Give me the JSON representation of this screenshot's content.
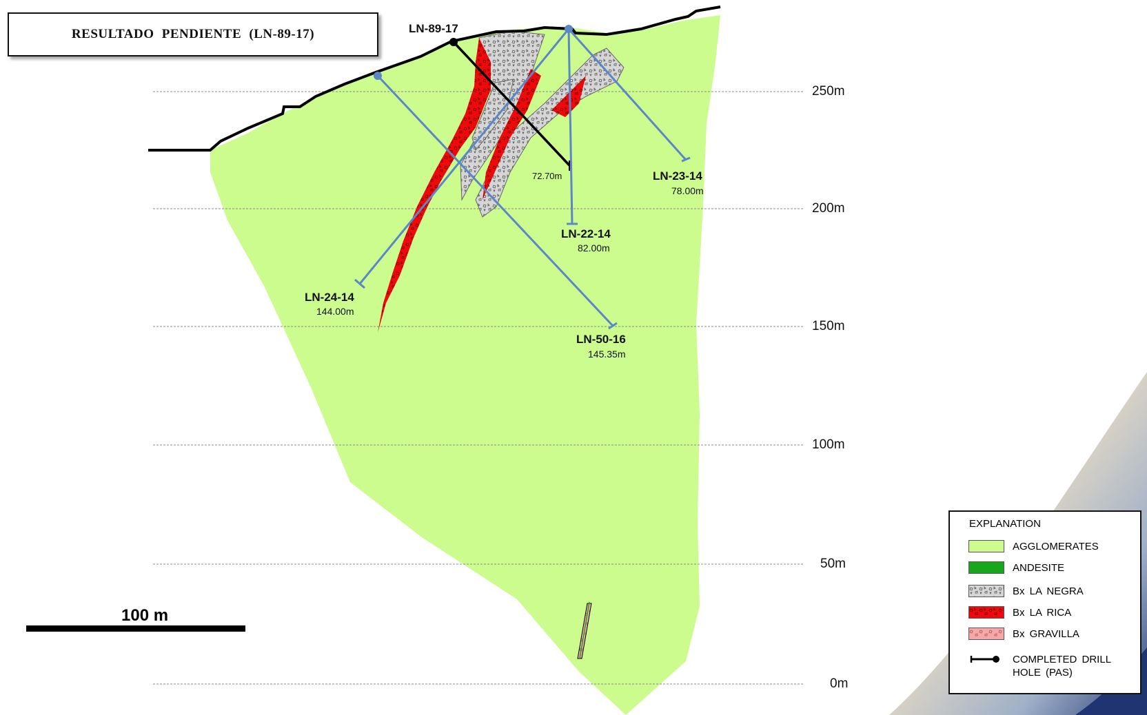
{
  "title": "RESULTADO   PENDIENTE   (LN-89-17)",
  "drill_holes": [
    {
      "id": "LN-89-17",
      "depth": "72.70m"
    },
    {
      "id": "LN-23-14",
      "depth": "78.00m"
    },
    {
      "id": "LN-22-14",
      "depth": "82.00m"
    },
    {
      "id": "LN-24-14",
      "depth": "144.00m"
    },
    {
      "id": "LN-50-16",
      "depth": "145.35m"
    }
  ],
  "elevations": [
    "250m",
    "200m",
    "150m",
    "100m",
    "50m",
    "0m"
  ],
  "scale_bar": "100 m",
  "legend": {
    "header": "EXPLANATION",
    "items": [
      {
        "label": "AGGLOMERATES",
        "color": "#ccfb8e"
      },
      {
        "label": "ANDESITE",
        "color": "#18a61c"
      },
      {
        "label": "Bx  LA NEGRA",
        "color": "#d4d4d4"
      },
      {
        "label": "Bx  LA RICA",
        "color": "#ee0000"
      },
      {
        "label": "Bx  GRAVILLA",
        "color": "#f6a7a7"
      },
      {
        "label": "COMPLETED  DRILL HOLE (PAS)",
        "color": "#000000"
      }
    ]
  },
  "colors": {
    "agglomerate": "#ccfb8e",
    "drill_line": "#5b87c6",
    "bx_rica": "#ee0000",
    "bx_negra": "#d4d4d4"
  }
}
